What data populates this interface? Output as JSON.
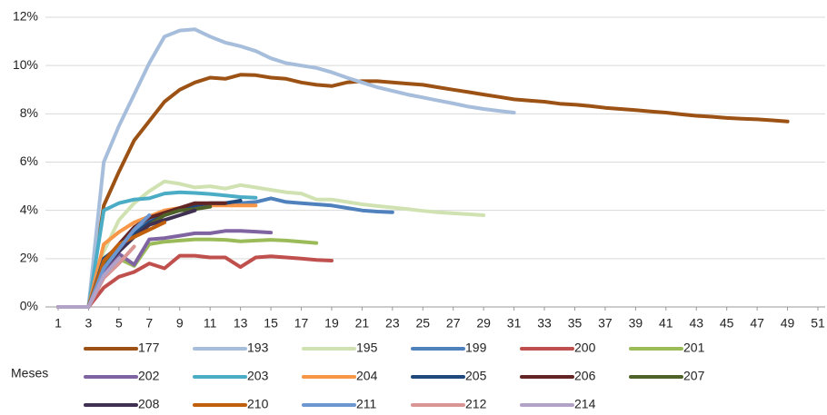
{
  "chart_data": {
    "type": "line",
    "x_label": "Meses",
    "x": [
      1,
      2,
      3,
      4,
      5,
      6,
      7,
      8,
      9,
      10,
      11,
      12,
      13,
      14,
      15,
      16,
      17,
      18,
      19,
      20,
      21,
      22,
      23,
      24,
      25,
      26,
      27,
      28,
      29,
      30,
      31,
      32,
      33,
      34,
      35,
      36,
      37,
      38,
      39,
      40,
      41,
      42,
      43,
      44,
      45,
      46,
      47,
      48,
      49
    ],
    "xlim": [
      1,
      51
    ],
    "xticks": [
      1,
      3,
      5,
      7,
      9,
      11,
      13,
      15,
      17,
      19,
      21,
      23,
      25,
      27,
      29,
      31,
      33,
      35,
      37,
      39,
      41,
      43,
      45,
      47,
      49,
      51
    ],
    "ylim": [
      0,
      12
    ],
    "yticks": [
      {
        "value": 0,
        "label": "0%"
      },
      {
        "value": 2,
        "label": "2%"
      },
      {
        "value": 4,
        "label": "4%"
      },
      {
        "value": 6,
        "label": "6%"
      },
      {
        "value": 8,
        "label": "8%"
      },
      {
        "value": 10,
        "label": "10%"
      },
      {
        "value": 12,
        "label": "12%"
      }
    ],
    "grid": true,
    "series": [
      {
        "name": "177",
        "color": "#9c5215",
        "values": [
          0,
          0,
          0,
          4.2,
          5.6,
          6.9,
          7.7,
          8.5,
          9.0,
          9.3,
          9.5,
          9.45,
          9.62,
          9.6,
          9.5,
          9.45,
          9.3,
          9.2,
          9.15,
          9.3,
          9.35,
          9.35,
          9.3,
          9.25,
          9.2,
          9.1,
          9.0,
          8.9,
          8.8,
          8.7,
          8.6,
          8.55,
          8.5,
          8.42,
          8.38,
          8.32,
          8.25,
          8.2,
          8.15,
          8.1,
          8.05,
          7.98,
          7.92,
          7.88,
          7.83,
          7.8,
          7.77,
          7.73,
          7.68
        ]
      },
      {
        "name": "193",
        "color": "#a6bddb",
        "values": [
          0,
          0,
          0,
          6.0,
          7.5,
          8.8,
          10.1,
          11.2,
          11.45,
          11.5,
          11.2,
          10.95,
          10.8,
          10.6,
          10.3,
          10.1,
          10.0,
          9.9,
          9.72,
          9.5,
          9.3,
          9.1,
          8.95,
          8.8,
          8.68,
          8.55,
          8.43,
          8.3,
          8.2,
          8.12,
          8.05,
          null,
          null,
          null,
          null,
          null,
          null,
          null,
          null,
          null,
          null,
          null,
          null,
          null,
          null,
          null,
          null,
          null,
          null
        ]
      },
      {
        "name": "195",
        "color": "#d0e2b1",
        "values": [
          0,
          0,
          0,
          2.3,
          3.6,
          4.3,
          4.8,
          5.2,
          5.1,
          4.95,
          5.0,
          4.9,
          5.05,
          4.95,
          4.85,
          4.75,
          4.7,
          4.45,
          4.45,
          4.35,
          4.25,
          4.18,
          4.12,
          4.05,
          3.98,
          3.92,
          3.88,
          3.84,
          3.8,
          null,
          null,
          null,
          null,
          null,
          null,
          null,
          null,
          null,
          null,
          null,
          null,
          null,
          null,
          null,
          null,
          null,
          null,
          null,
          null
        ]
      },
      {
        "name": "199",
        "color": "#4f81bd",
        "values": [
          0,
          0,
          0,
          1.7,
          2.4,
          3.0,
          3.6,
          3.9,
          4.0,
          4.1,
          4.2,
          4.25,
          4.3,
          4.35,
          4.5,
          4.35,
          4.3,
          4.25,
          4.2,
          4.1,
          4.0,
          3.95,
          3.92,
          null,
          null,
          null,
          null,
          null,
          null,
          null,
          null,
          null,
          null,
          null,
          null,
          null,
          null,
          null,
          null,
          null,
          null,
          null,
          null,
          null,
          null,
          null,
          null,
          null,
          null
        ]
      },
      {
        "name": "200",
        "color": "#c0504d",
        "values": [
          0,
          0,
          0,
          0.8,
          1.25,
          1.45,
          1.8,
          1.6,
          2.12,
          2.12,
          2.05,
          2.05,
          1.65,
          2.05,
          2.1,
          2.05,
          2.0,
          1.95,
          1.92,
          null,
          null,
          null,
          null,
          null,
          null,
          null,
          null,
          null,
          null,
          null,
          null,
          null,
          null,
          null,
          null,
          null,
          null,
          null,
          null,
          null,
          null,
          null,
          null,
          null,
          null,
          null,
          null,
          null,
          null
        ]
      },
      {
        "name": "201",
        "color": "#9bbb59",
        "values": [
          0,
          0,
          0,
          1.5,
          2.0,
          1.7,
          2.6,
          2.7,
          2.75,
          2.8,
          2.8,
          2.78,
          2.72,
          2.75,
          2.78,
          2.75,
          2.7,
          2.65,
          null,
          null,
          null,
          null,
          null,
          null,
          null,
          null,
          null,
          null,
          null,
          null,
          null,
          null,
          null,
          null,
          null,
          null,
          null,
          null,
          null,
          null,
          null,
          null,
          null,
          null,
          null,
          null,
          null,
          null,
          null
        ]
      },
      {
        "name": "202",
        "color": "#8064a2",
        "values": [
          0,
          0,
          0,
          1.5,
          2.2,
          1.75,
          2.8,
          2.85,
          2.95,
          3.05,
          3.05,
          3.15,
          3.15,
          3.12,
          3.08,
          null,
          null,
          null,
          null,
          null,
          null,
          null,
          null,
          null,
          null,
          null,
          null,
          null,
          null,
          null,
          null,
          null,
          null,
          null,
          null,
          null,
          null,
          null,
          null,
          null,
          null,
          null,
          null,
          null,
          null,
          null,
          null,
          null,
          null
        ]
      },
      {
        "name": "203",
        "color": "#4bacc6",
        "values": [
          0,
          0,
          0,
          4.0,
          4.3,
          4.45,
          4.5,
          4.7,
          4.75,
          4.72,
          4.68,
          4.62,
          4.55,
          4.52,
          null,
          null,
          null,
          null,
          null,
          null,
          null,
          null,
          null,
          null,
          null,
          null,
          null,
          null,
          null,
          null,
          null,
          null,
          null,
          null,
          null,
          null,
          null,
          null,
          null,
          null,
          null,
          null,
          null,
          null,
          null,
          null,
          null,
          null,
          null
        ]
      },
      {
        "name": "204",
        "color": "#f79646",
        "values": [
          0,
          0,
          0,
          2.6,
          3.1,
          3.5,
          3.75,
          4.0,
          4.1,
          4.15,
          4.2,
          4.2,
          4.2,
          4.2,
          null,
          null,
          null,
          null,
          null,
          null,
          null,
          null,
          null,
          null,
          null,
          null,
          null,
          null,
          null,
          null,
          null,
          null,
          null,
          null,
          null,
          null,
          null,
          null,
          null,
          null,
          null,
          null,
          null,
          null,
          null,
          null,
          null,
          null,
          null
        ]
      },
      {
        "name": "205",
        "color": "#1f497d",
        "values": [
          0,
          0,
          0,
          2.0,
          2.5,
          3.0,
          3.5,
          3.8,
          4.0,
          4.2,
          4.3,
          4.3,
          4.4,
          null,
          null,
          null,
          null,
          null,
          null,
          null,
          null,
          null,
          null,
          null,
          null,
          null,
          null,
          null,
          null,
          null,
          null,
          null,
          null,
          null,
          null,
          null,
          null,
          null,
          null,
          null,
          null,
          null,
          null,
          null,
          null,
          null,
          null,
          null,
          null
        ]
      },
      {
        "name": "206",
        "color": "#632523",
        "values": [
          0,
          0,
          0,
          1.8,
          2.6,
          3.3,
          3.7,
          3.9,
          4.1,
          4.3,
          4.3,
          4.3,
          null,
          null,
          null,
          null,
          null,
          null,
          null,
          null,
          null,
          null,
          null,
          null,
          null,
          null,
          null,
          null,
          null,
          null,
          null,
          null,
          null,
          null,
          null,
          null,
          null,
          null,
          null,
          null,
          null,
          null,
          null,
          null,
          null,
          null,
          null,
          null,
          null
        ]
      },
      {
        "name": "207",
        "color": "#4f6228",
        "values": [
          0,
          0,
          0,
          1.7,
          2.4,
          2.9,
          3.4,
          3.8,
          4.0,
          4.05,
          4.15,
          null,
          null,
          null,
          null,
          null,
          null,
          null,
          null,
          null,
          null,
          null,
          null,
          null,
          null,
          null,
          null,
          null,
          null,
          null,
          null,
          null,
          null,
          null,
          null,
          null,
          null,
          null,
          null,
          null,
          null,
          null,
          null,
          null,
          null,
          null,
          null,
          null,
          null
        ]
      },
      {
        "name": "208",
        "color": "#403152",
        "values": [
          0,
          0,
          0,
          1.6,
          2.3,
          2.9,
          3.4,
          3.6,
          3.8,
          4.0,
          null,
          null,
          null,
          null,
          null,
          null,
          null,
          null,
          null,
          null,
          null,
          null,
          null,
          null,
          null,
          null,
          null,
          null,
          null,
          null,
          null,
          null,
          null,
          null,
          null,
          null,
          null,
          null,
          null,
          null,
          null,
          null,
          null,
          null,
          null,
          null,
          null,
          null,
          null
        ]
      },
      {
        "name": "210",
        "color": "#c0600c",
        "values": [
          0,
          0,
          0,
          1.9,
          2.6,
          2.9,
          3.2,
          3.5,
          null,
          null,
          null,
          null,
          null,
          null,
          null,
          null,
          null,
          null,
          null,
          null,
          null,
          null,
          null,
          null,
          null,
          null,
          null,
          null,
          null,
          null,
          null,
          null,
          null,
          null,
          null,
          null,
          null,
          null,
          null,
          null,
          null,
          null,
          null,
          null,
          null,
          null,
          null,
          null,
          null
        ]
      },
      {
        "name": "211",
        "color": "#6d97d0",
        "values": [
          0,
          0,
          0,
          1.6,
          2.4,
          3.2,
          3.8,
          null,
          null,
          null,
          null,
          null,
          null,
          null,
          null,
          null,
          null,
          null,
          null,
          null,
          null,
          null,
          null,
          null,
          null,
          null,
          null,
          null,
          null,
          null,
          null,
          null,
          null,
          null,
          null,
          null,
          null,
          null,
          null,
          null,
          null,
          null,
          null,
          null,
          null,
          null,
          null,
          null,
          null
        ]
      },
      {
        "name": "212",
        "color": "#d99694",
        "values": [
          0,
          0,
          0,
          1.2,
          1.8,
          2.5,
          null,
          null,
          null,
          null,
          null,
          null,
          null,
          null,
          null,
          null,
          null,
          null,
          null,
          null,
          null,
          null,
          null,
          null,
          null,
          null,
          null,
          null,
          null,
          null,
          null,
          null,
          null,
          null,
          null,
          null,
          null,
          null,
          null,
          null,
          null,
          null,
          null,
          null,
          null,
          null,
          null,
          null,
          null
        ]
      },
      {
        "name": "214",
        "color": "#b3a2c7",
        "values": [
          0,
          0,
          0,
          1.3,
          2.0,
          null,
          null,
          null,
          null,
          null,
          null,
          null,
          null,
          null,
          null,
          null,
          null,
          null,
          null,
          null,
          null,
          null,
          null,
          null,
          null,
          null,
          null,
          null,
          null,
          null,
          null,
          null,
          null,
          null,
          null,
          null,
          null,
          null,
          null,
          null,
          null,
          null,
          null,
          null,
          null,
          null,
          null,
          null,
          null
        ]
      }
    ]
  }
}
